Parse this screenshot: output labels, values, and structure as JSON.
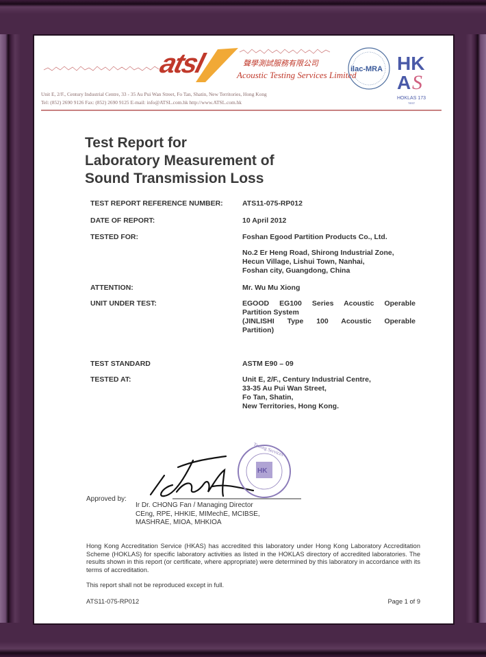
{
  "letterhead": {
    "logo_text": "atsl",
    "chinese_name": "聲學測試服務有限公司",
    "company_name": "Acoustic Testing Services Limited",
    "address": "Unit E, 2/F., Century Industrial Centre, 33 - 35 Au Pui Wan Street, Fo Tan, Shatin, New Territories, Hong Kong",
    "contact": "Tel: (852) 2690 9126     Fax: (852) 2690 9125     E-mail: info@ATSL.com.hk     http://www.ATSL.com.hk",
    "ilac_badge": "ilac-MRA",
    "hkas_badge": "HKAS",
    "hoklas_badge": "HOKLAS 173",
    "hoklas_sub": "TEST"
  },
  "title_lines": [
    "Test Report for",
    "Laboratory Measurement of",
    "Sound Transmission Loss"
  ],
  "fields": {
    "ref_label": "TEST REPORT REFERENCE NUMBER:",
    "ref_value": "ATS11-075-RP012",
    "date_label": "DATE OF REPORT:",
    "date_value": "10 April 2012",
    "tested_for_label": "TESTED FOR:",
    "tested_for_value": "Foshan Egood Partition Products Co., Ltd.",
    "client_address": [
      "No.2 Er Heng Road, Shirong Industrial Zone,",
      "Hecun Village, Lishui Town, Nanhai,",
      "Foshan city, Guangdong, China"
    ],
    "attention_label": "ATTENTION:",
    "attention_value": "Mr. Wu Mu Xiong",
    "unit_label": "UNIT UNDER TEST:",
    "unit_value": [
      "EGOOD EG100 Series Acoustic Operable",
      "Partition System",
      "(JINLISHI Type 100 Acoustic Operable",
      "Partition)"
    ],
    "standard_label": "TEST STANDARD",
    "standard_value": "ASTM E90 – 09",
    "tested_at_label": "TESTED AT:",
    "tested_at_value": [
      "Unit E, 2/F., Century Industrial Centre,",
      "33-35 Au Pui Wan Street,",
      "Fo Tan, Shatin,",
      "New Territories, Hong Kong."
    ]
  },
  "approval": {
    "label": "Approved by:",
    "name": "Ir Dr. CHONG Fan / Managing Director",
    "credentials": [
      "CEng, RPE, HHKIE, MIMechE, MCIBSE,",
      "MASHRAE, MIOA, MHKIOA"
    ],
    "seal_text": "Acoustic Testing Services Limited"
  },
  "accreditation": "Hong Kong Accreditation Service (HKAS) has accredited this laboratory under Hong Kong Laboratory Accreditation Scheme (HOKLAS) for specific laboratory activities as listed in the HOKLAS directory of accredited laboratories. The results shown in this report (or certificate, where appropriate) were determined by this laboratory in accordance with its terms of accreditation.",
  "reproduction_notice": "This report shall not be reproduced except in full.",
  "footer": {
    "ref": "ATS11-075-RP012",
    "page": "Page 1 of 9"
  },
  "colors": {
    "frame": "#4a2848",
    "logo_red": "#c0392b",
    "logo_orange": "#f0a020",
    "seal": "#8a7ab8"
  }
}
